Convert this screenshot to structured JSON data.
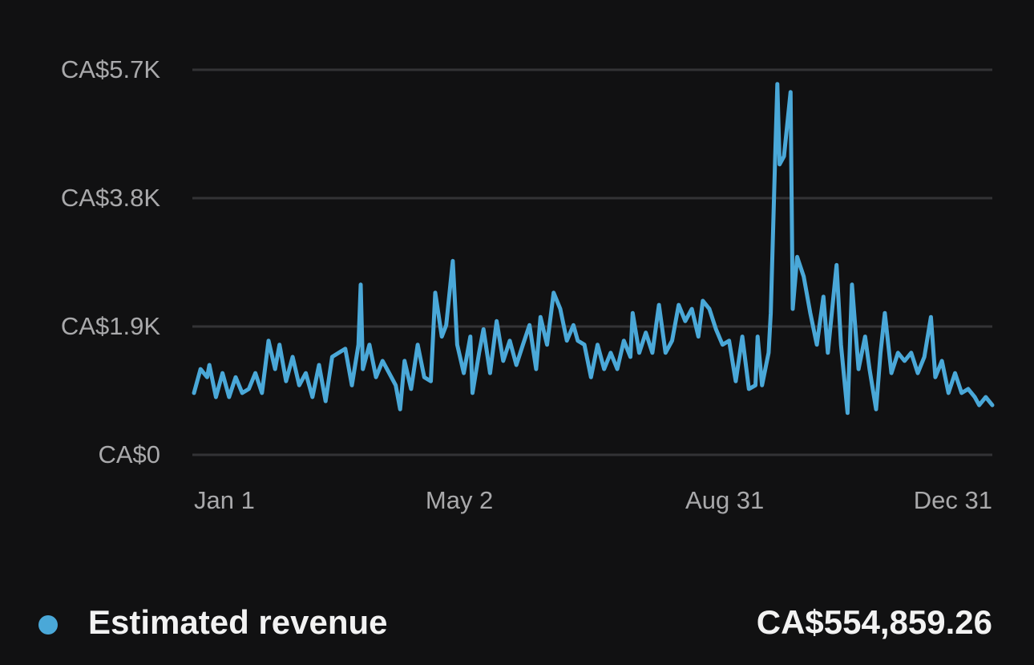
{
  "chart_data": {
    "type": "line",
    "x": [
      0,
      3,
      6,
      7,
      10,
      13,
      16,
      19,
      22,
      25,
      28,
      31,
      34,
      37,
      39,
      42,
      45,
      48,
      51,
      54,
      57,
      60,
      63,
      66,
      69,
      72,
      75,
      76,
      77,
      80,
      83,
      86,
      89,
      92,
      94,
      96,
      99,
      102,
      105,
      108,
      110,
      113,
      115,
      118,
      120,
      123,
      126,
      127,
      130,
      132,
      135,
      138,
      141,
      144,
      147,
      150,
      153,
      156,
      158,
      161,
      164,
      167,
      170,
      173,
      175,
      178,
      181,
      184,
      187,
      190,
      193,
      196,
      199,
      200,
      203,
      206,
      209,
      212,
      215,
      218,
      221,
      224,
      227,
      230,
      232,
      235,
      238,
      241,
      244,
      247,
      250,
      253,
      256,
      257,
      259,
      262,
      263,
      265,
      266,
      267,
      269,
      272,
      273,
      275,
      278,
      281,
      284,
      287,
      289,
      293,
      295,
      298,
      300,
      303,
      306,
      308,
      311,
      313,
      315,
      318,
      321,
      324,
      327,
      330,
      333,
      336,
      338,
      341,
      344,
      347,
      350,
      353,
      356,
      358,
      361,
      364
    ],
    "series": [
      {
        "name": "Estimated revenue",
        "color": "#4aa8d8",
        "values": [
          915,
          1270,
          1150,
          1330,
          855,
          1210,
          855,
          1150,
          915,
          975,
          1210,
          915,
          1690,
          1270,
          1630,
          1090,
          1450,
          1030,
          1210,
          855,
          1330,
          795,
          1450,
          1510,
          1570,
          1030,
          1630,
          2520,
          1270,
          1630,
          1150,
          1390,
          1210,
          1030,
          675,
          1390,
          975,
          1630,
          1150,
          1090,
          2400,
          1750,
          1920,
          2870,
          1630,
          1210,
          1750,
          915,
          1510,
          1860,
          1210,
          1980,
          1390,
          1690,
          1330,
          1630,
          1920,
          1270,
          2040,
          1630,
          2400,
          2160,
          1690,
          1920,
          1690,
          1630,
          1150,
          1630,
          1270,
          1510,
          1270,
          1690,
          1450,
          2100,
          1510,
          1810,
          1510,
          2220,
          1510,
          1690,
          2220,
          1980,
          2160,
          1750,
          2280,
          2160,
          1860,
          1630,
          1690,
          1090,
          1750,
          975,
          1030,
          1750,
          1030,
          1510,
          2100,
          4420,
          5490,
          4300,
          4420,
          5370,
          2160,
          2930,
          2640,
          2100,
          1630,
          2340,
          1510,
          2810,
          1630,
          620,
          2520,
          1270,
          1750,
          1270,
          675,
          1510,
          2100,
          1210,
          1510,
          1390,
          1510,
          1210,
          1450,
          2040,
          1150,
          1390,
          915,
          1210,
          915,
          975,
          855,
          735,
          855,
          735
        ]
      }
    ],
    "xlim": [
      0,
      364
    ],
    "xticks": [
      {
        "value": 0,
        "label": "Jan 1"
      },
      {
        "value": 121,
        "label": "May 2"
      },
      {
        "value": 242,
        "label": "Aug 31"
      },
      {
        "value": 364,
        "label": "Dec 31"
      }
    ],
    "ylim": [
      0,
      5700
    ],
    "yticks": [
      {
        "value": 0,
        "label": "CA$0"
      },
      {
        "value": 1900,
        "label": "CA$1.9K"
      },
      {
        "value": 3800,
        "label": "CA$3.8K"
      },
      {
        "value": 5700,
        "label": "CA$5.7K"
      }
    ],
    "grid": true,
    "total_label": "CA$554,859.26"
  }
}
